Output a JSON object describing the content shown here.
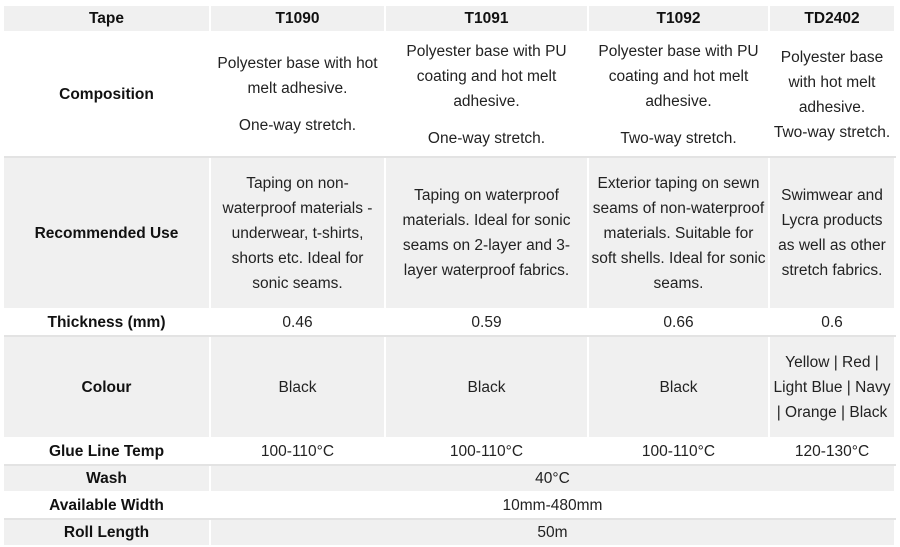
{
  "header": {
    "label": "Tape",
    "products": [
      "T1090",
      "T1091",
      "T1092",
      "TD2402"
    ]
  },
  "composition": {
    "label": "Composition",
    "values": [
      [
        "Polyester base with hot melt adhesive.",
        "One-way stretch."
      ],
      [
        "Polyester base with PU coating and hot melt adhesive.",
        "One-way stretch."
      ],
      [
        "Polyester base with PU coating and hot melt adhesive.",
        "Two-way stretch."
      ],
      [
        "Polyester base with hot melt adhesive.",
        "Two-way stretch."
      ]
    ]
  },
  "recommended_use": {
    "label": "Recommended Use",
    "values": [
      "Taping on non-waterproof materials - underwear, t-shirts, shorts etc. Ideal for sonic seams.",
      "Taping on waterproof materials. Ideal for sonic seams on 2-layer and 3-layer waterproof fabrics.",
      "Exterior taping on sewn seams of non-waterproof materials. Suitable for soft shells. Ideal for sonic seams.",
      "Swimwear and Lycra products as well as other stretch fabrics."
    ]
  },
  "thickness": {
    "label": "Thickness (mm)",
    "values": [
      "0.46",
      "0.59",
      "0.66",
      "0.6"
    ]
  },
  "colour": {
    "label": "Colour",
    "values": [
      "Black",
      "Black",
      "Black",
      "Yellow | Red | Light Blue | Navy | Orange | Black"
    ]
  },
  "glue_line_temp": {
    "label": "Glue Line Temp",
    "values": [
      "100-110°C",
      "100-110°C",
      "100-110°C",
      "120-130°C"
    ]
  },
  "wash": {
    "label": "Wash",
    "value": "40°C"
  },
  "available_width": {
    "label": "Available Width",
    "value": "10mm-480mm"
  },
  "roll_length": {
    "label": "Roll Length",
    "value": "50m"
  }
}
